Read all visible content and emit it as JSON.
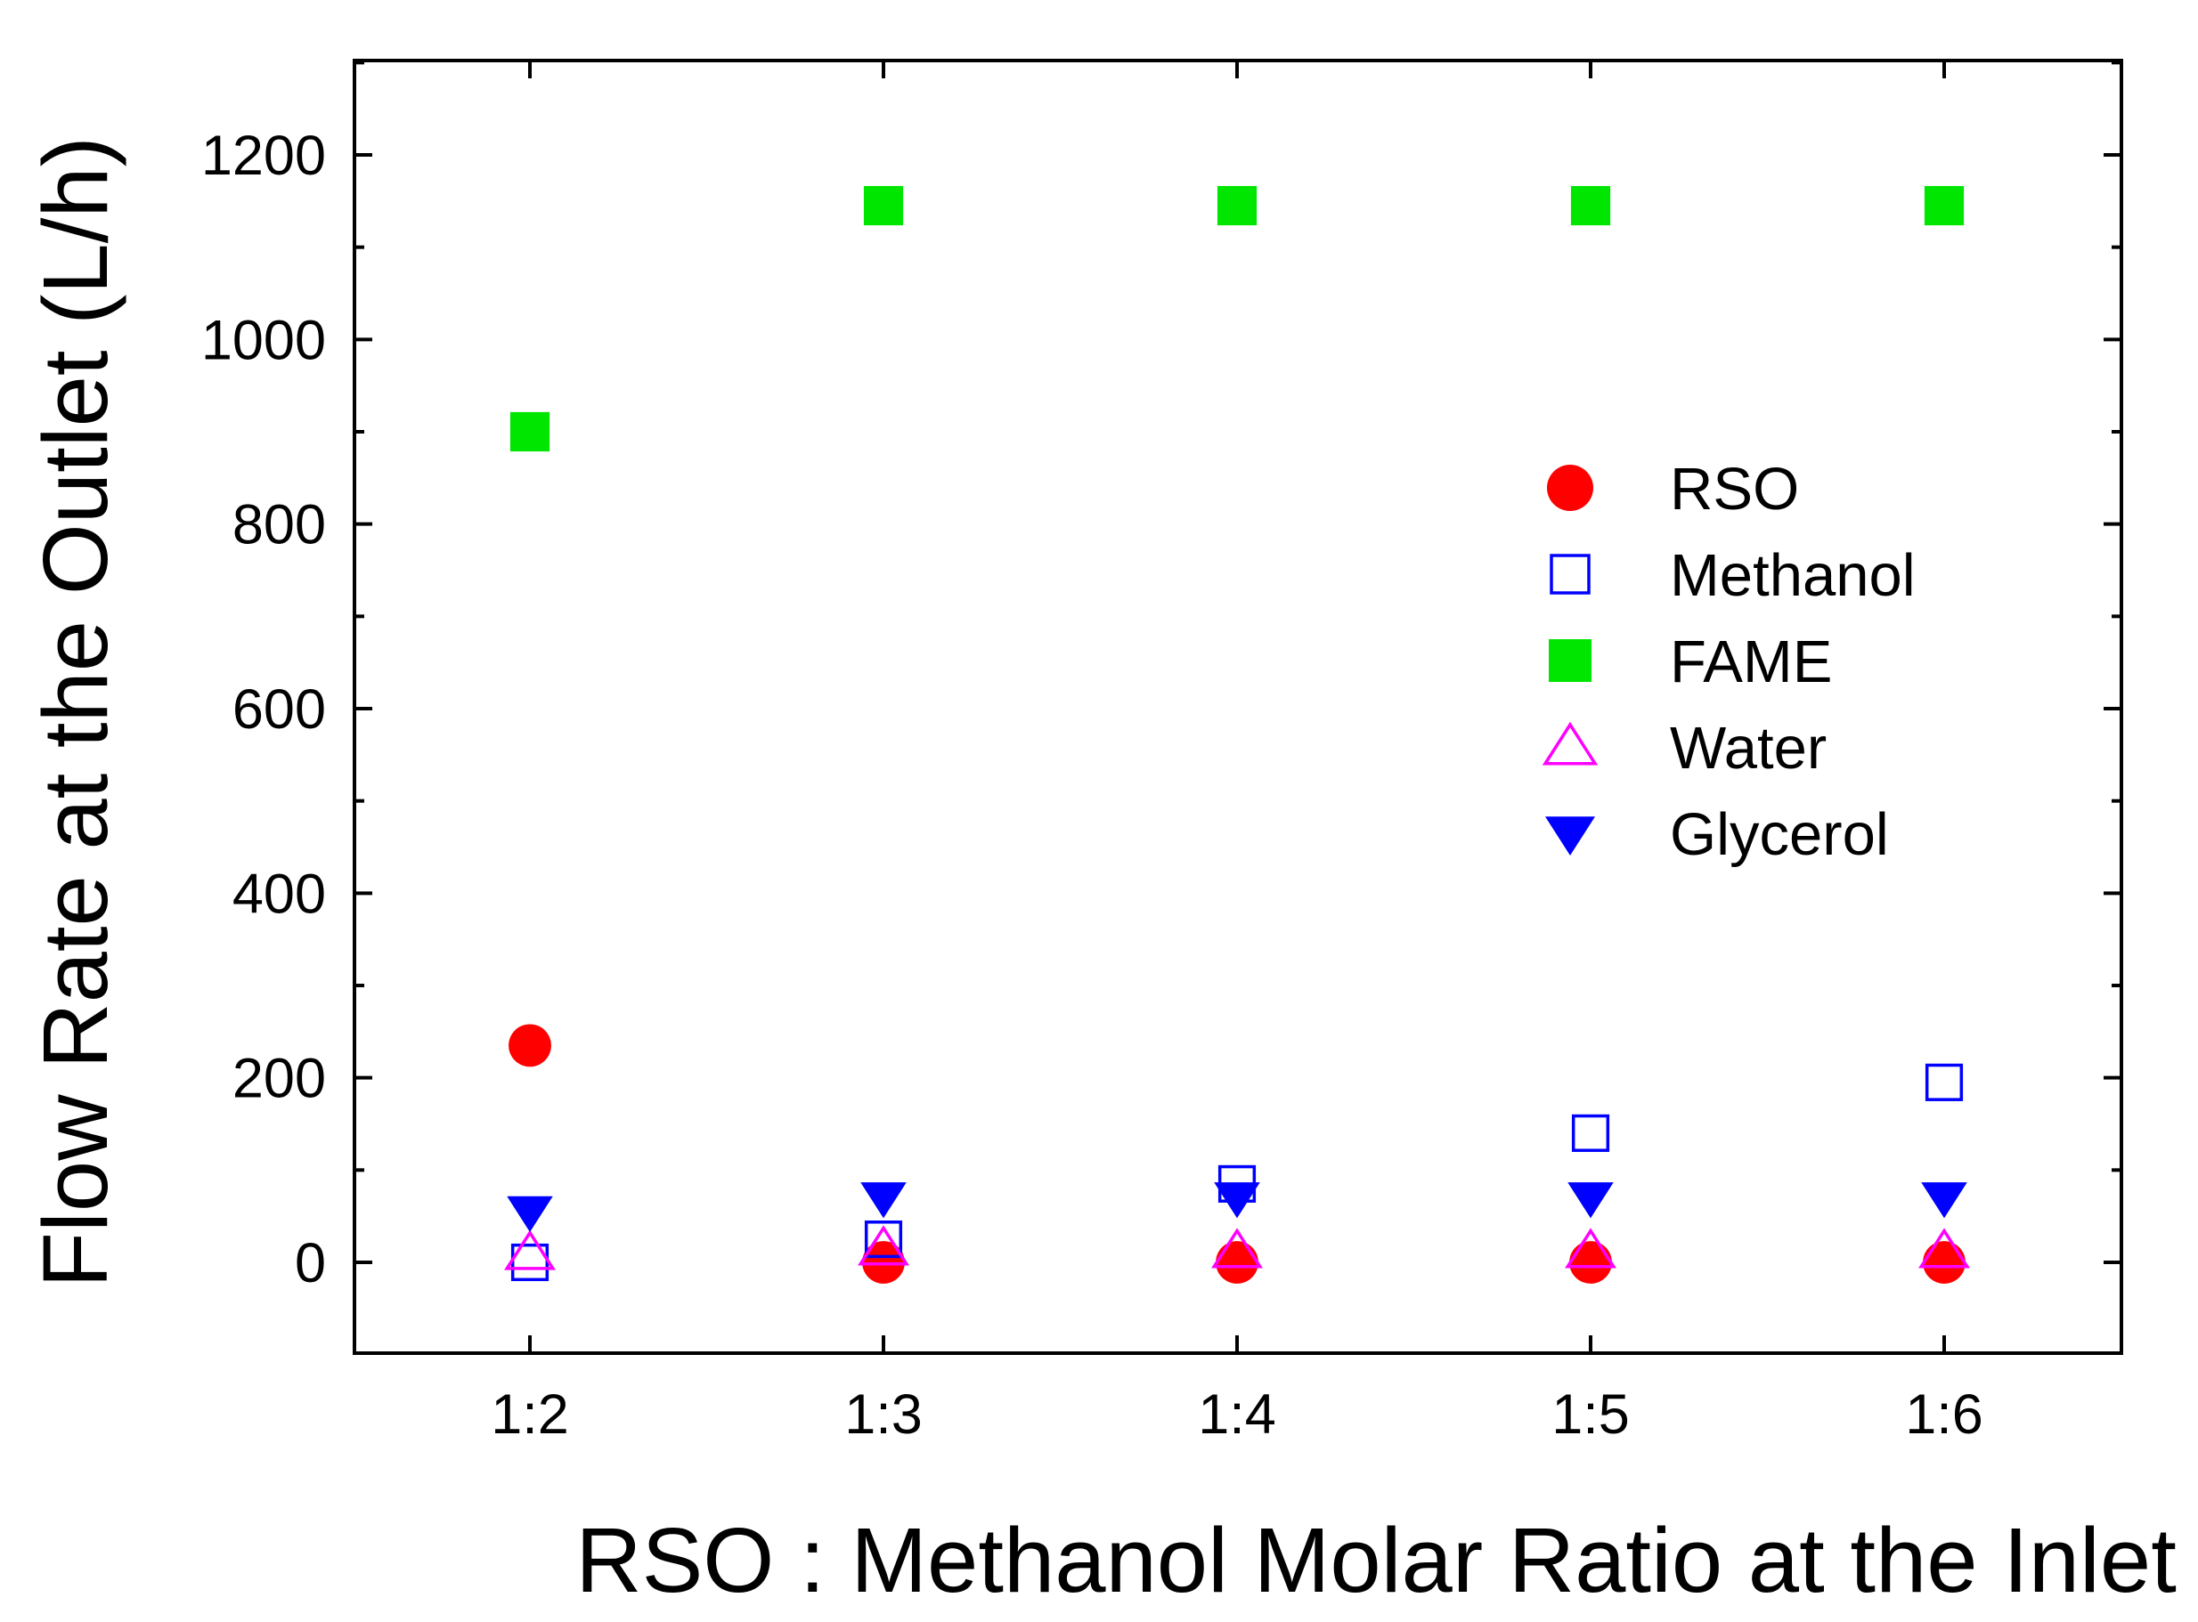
{
  "chart_data": {
    "type": "scatter",
    "title": "",
    "xlabel": "RSO : Methanol Molar Ratio at the Inlet",
    "ylabel": "Flow Rate at the Outlet (L/h)",
    "categories": [
      "1:2",
      "1:3",
      "1:4",
      "1:5",
      "1:6"
    ],
    "ylim": [
      -100,
      1300
    ],
    "yticks": [
      0,
      200,
      400,
      600,
      800,
      1000,
      1200
    ],
    "grid": false,
    "legend_position": "right",
    "series": [
      {
        "name": "RSO",
        "marker": "circle-filled",
        "color": "#ff0000",
        "values": [
          235,
          0,
          0,
          0,
          0
        ]
      },
      {
        "name": "Methanol",
        "marker": "square-open",
        "color": "#0000ff",
        "values": [
          0,
          25,
          85,
          140,
          195
        ]
      },
      {
        "name": "FAME",
        "marker": "square-filled",
        "color": "#00e600",
        "values": [
          900,
          1145,
          1145,
          1145,
          1145
        ]
      },
      {
        "name": "Water",
        "marker": "triangle-up-open",
        "color": "#ff00ff",
        "values": [
          10,
          15,
          12,
          12,
          12
        ]
      },
      {
        "name": "Glycerol",
        "marker": "triangle-down-filled",
        "color": "#0000ff",
        "values": [
          55,
          70,
          70,
          70,
          70
        ]
      }
    ]
  }
}
